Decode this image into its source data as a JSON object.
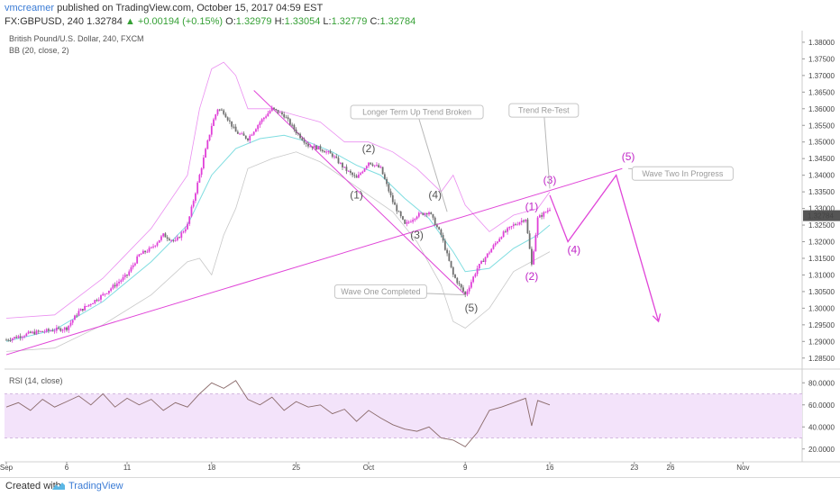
{
  "header": {
    "author": "vmcreamer",
    "published": "published on TradingView.com, October 15, 2017 04:59 EST",
    "symbol": "FX:GBPUSD, 240",
    "last": "1.32784",
    "change": "+0.00194 (+0.15%)",
    "o_label": "O:",
    "o_value": "1.32979",
    "h_label": "H:",
    "h_value": "1.33054",
    "l_label": "L:",
    "l_value": "1.32779",
    "c_label": "C:",
    "c_value": "1.32784"
  },
  "footer": {
    "created_with": "Created with",
    "brand": "TradingView"
  },
  "chart_data": {
    "type": "candlestick",
    "title": "British Pound/U.S. Dollar, 240, FXCM",
    "indicator_label": "BB (20, close, 2)",
    "rsi_label": "RSI (14, close)",
    "current_price_label": "1.32784",
    "ylim": [
      1.2825,
      1.3835
    ],
    "y_ticks": [
      "1.38000",
      "1.37500",
      "1.37000",
      "1.36500",
      "1.36000",
      "1.35500",
      "1.35000",
      "1.34500",
      "1.34000",
      "1.33500",
      "1.33000",
      "1.32500",
      "1.32000",
      "1.31500",
      "1.31000",
      "1.30500",
      "1.30000",
      "1.29500",
      "1.29000",
      "1.28500"
    ],
    "rsi_ylim": [
      10,
      90
    ],
    "rsi_ticks": [
      "80.0000",
      "60.0000",
      "40.0000",
      "20.0000"
    ],
    "rsi_band": [
      30,
      70
    ],
    "x_ticks": [
      {
        "label": "Sep",
        "day": 0
      },
      {
        "label": "6",
        "day": 5
      },
      {
        "label": "11",
        "day": 10
      },
      {
        "label": "18",
        "day": 17
      },
      {
        "label": "25",
        "day": 24
      },
      {
        "label": "Oct",
        "day": 30
      },
      {
        "label": "9",
        "day": 38
      },
      {
        "label": "16",
        "day": 45
      },
      {
        "label": "23",
        "day": 52
      },
      {
        "label": "26",
        "day": 55
      },
      {
        "label": "Nov",
        "day": 61
      }
    ],
    "price_path": [
      [
        0,
        1.2905
      ],
      [
        2,
        1.2925
      ],
      [
        4,
        1.2935
      ],
      [
        5,
        1.294
      ],
      [
        6,
        1.299
      ],
      [
        8,
        1.304
      ],
      [
        10,
        1.31
      ],
      [
        11,
        1.316
      ],
      [
        12,
        1.318
      ],
      [
        13,
        1.322
      ],
      [
        14,
        1.32
      ],
      [
        15,
        1.325
      ],
      [
        16,
        1.34
      ],
      [
        17,
        1.355
      ],
      [
        17.5,
        1.36
      ],
      [
        18,
        1.359
      ],
      [
        19,
        1.353
      ],
      [
        20,
        1.351
      ],
      [
        21,
        1.356
      ],
      [
        22,
        1.36
      ],
      [
        23,
        1.358
      ],
      [
        24,
        1.353
      ],
      [
        25,
        1.349
      ],
      [
        26,
        1.348
      ],
      [
        27,
        1.346
      ],
      [
        28,
        1.342
      ],
      [
        29,
        1.339
      ],
      [
        30,
        1.344
      ],
      [
        31,
        1.342
      ],
      [
        32,
        1.332
      ],
      [
        33,
        1.325
      ],
      [
        34,
        1.328
      ],
      [
        35,
        1.329
      ],
      [
        36,
        1.322
      ],
      [
        37,
        1.31
      ],
      [
        38,
        1.304
      ],
      [
        39,
        1.312
      ],
      [
        40,
        1.317
      ],
      [
        41,
        1.322
      ],
      [
        42,
        1.325
      ],
      [
        43,
        1.327
      ],
      [
        43.5,
        1.313
      ],
      [
        44,
        1.327
      ],
      [
        45,
        1.33
      ]
    ],
    "bb_mid": [
      [
        0,
        1.29
      ],
      [
        4,
        1.2935
      ],
      [
        8,
        1.302
      ],
      [
        12,
        1.314
      ],
      [
        15,
        1.325
      ],
      [
        17,
        1.34
      ],
      [
        19,
        1.348
      ],
      [
        21,
        1.351
      ],
      [
        23,
        1.352
      ],
      [
        25,
        1.35
      ],
      [
        27,
        1.347
      ],
      [
        29,
        1.343
      ],
      [
        31,
        1.34
      ],
      [
        33,
        1.333
      ],
      [
        35,
        1.327
      ],
      [
        37,
        1.317
      ],
      [
        38,
        1.311
      ],
      [
        40,
        1.312
      ],
      [
        42,
        1.318
      ],
      [
        44,
        1.322
      ],
      [
        45,
        1.325
      ]
    ],
    "bb_upper": [
      [
        0,
        1.297
      ],
      [
        4,
        1.298
      ],
      [
        8,
        1.309
      ],
      [
        12,
        1.324
      ],
      [
        15,
        1.34
      ],
      [
        16,
        1.36
      ],
      [
        17,
        1.372
      ],
      [
        18,
        1.374
      ],
      [
        19,
        1.37
      ],
      [
        20,
        1.36
      ],
      [
        22,
        1.36
      ],
      [
        24,
        1.358
      ],
      [
        26,
        1.356
      ],
      [
        28,
        1.35
      ],
      [
        30,
        1.35
      ],
      [
        32,
        1.347
      ],
      [
        34,
        1.342
      ],
      [
        36,
        1.335
      ],
      [
        37,
        1.34
      ],
      [
        38,
        1.331
      ],
      [
        40,
        1.323
      ],
      [
        42,
        1.328
      ],
      [
        44,
        1.33
      ],
      [
        45,
        1.335
      ]
    ],
    "bb_lower": [
      [
        0,
        1.287
      ],
      [
        4,
        1.288
      ],
      [
        8,
        1.295
      ],
      [
        12,
        1.304
      ],
      [
        15,
        1.314
      ],
      [
        16,
        1.315
      ],
      [
        17,
        1.31
      ],
      [
        18,
        1.322
      ],
      [
        19,
        1.33
      ],
      [
        20,
        1.342
      ],
      [
        22,
        1.345
      ],
      [
        24,
        1.347
      ],
      [
        26,
        1.344
      ],
      [
        28,
        1.339
      ],
      [
        30,
        1.334
      ],
      [
        32,
        1.329
      ],
      [
        34,
        1.32
      ],
      [
        36,
        1.307
      ],
      [
        37,
        1.296
      ],
      [
        38,
        1.294
      ],
      [
        40,
        1.3
      ],
      [
        42,
        1.311
      ],
      [
        44,
        1.315
      ],
      [
        45,
        1.317
      ]
    ],
    "rsi": [
      [
        0,
        58
      ],
      [
        1,
        62
      ],
      [
        2,
        55
      ],
      [
        3,
        65
      ],
      [
        4,
        58
      ],
      [
        5,
        63
      ],
      [
        6,
        68
      ],
      [
        7,
        60
      ],
      [
        8,
        70
      ],
      [
        9,
        58
      ],
      [
        10,
        66
      ],
      [
        11,
        60
      ],
      [
        12,
        65
      ],
      [
        13,
        55
      ],
      [
        14,
        62
      ],
      [
        15,
        58
      ],
      [
        16,
        70
      ],
      [
        17,
        80
      ],
      [
        18,
        75
      ],
      [
        19,
        82
      ],
      [
        20,
        65
      ],
      [
        21,
        60
      ],
      [
        22,
        67
      ],
      [
        23,
        55
      ],
      [
        24,
        63
      ],
      [
        25,
        58
      ],
      [
        26,
        60
      ],
      [
        27,
        52
      ],
      [
        28,
        56
      ],
      [
        29,
        45
      ],
      [
        30,
        55
      ],
      [
        31,
        48
      ],
      [
        32,
        42
      ],
      [
        33,
        38
      ],
      [
        34,
        36
      ],
      [
        35,
        40
      ],
      [
        36,
        30
      ],
      [
        37,
        28
      ],
      [
        38,
        22
      ],
      [
        39,
        35
      ],
      [
        40,
        55
      ],
      [
        41,
        58
      ],
      [
        42,
        62
      ],
      [
        43,
        66
      ],
      [
        43.5,
        41
      ],
      [
        44,
        64
      ],
      [
        45,
        60
      ]
    ],
    "lines": [
      {
        "name": "Trend Line",
        "from": [
          0,
          1.286
        ],
        "to": [
          51,
          1.342
        ]
      },
      {
        "name": "Down Trend",
        "from": [
          20.5,
          1.3655
        ],
        "to": [
          38,
          1.304
        ]
      }
    ],
    "projection": [
      [
        45,
        1.334
      ],
      [
        46.5,
        1.32
      ],
      [
        50.5,
        1.34
      ],
      [
        54,
        1.296
      ]
    ],
    "annotations": [
      {
        "text": "Longer Term Up Trend Broken",
        "x": 34,
        "y": 1.359,
        "target": [
          36.5,
          1.329
        ]
      },
      {
        "text": "Trend Re-Test",
        "x": 44.5,
        "y": 1.3595,
        "target": [
          45,
          1.336
        ]
      },
      {
        "text": "Wave One Completed",
        "x": 31,
        "y": 1.305,
        "target": [
          38,
          1.304
        ]
      },
      {
        "text": "Wave Two In Progress",
        "x": 56,
        "y": 1.3405,
        "target": [
          51.5,
          1.342
        ]
      }
    ],
    "wave_labels": [
      {
        "text": "(1)",
        "x": 29,
        "y": 1.333,
        "color": "#555555"
      },
      {
        "text": "(2)",
        "x": 30,
        "y": 1.347,
        "color": "#555555"
      },
      {
        "text": "(3)",
        "x": 34,
        "y": 1.321,
        "color": "#555555"
      },
      {
        "text": "(4)",
        "x": 35.5,
        "y": 1.333,
        "color": "#555555"
      },
      {
        "text": "(5)",
        "x": 38.5,
        "y": 1.299,
        "color": "#555555"
      },
      {
        "text": "(1)",
        "x": 43.5,
        "y": 1.3295,
        "color": "#c026c7"
      },
      {
        "text": "(2)",
        "x": 43.5,
        "y": 1.3085,
        "color": "#c026c7"
      },
      {
        "text": "(3)",
        "x": 45,
        "y": 1.3375,
        "color": "#c026c7"
      },
      {
        "text": "(4)",
        "x": 47,
        "y": 1.3165,
        "color": "#c026c7"
      },
      {
        "text": "(5)",
        "x": 51.5,
        "y": 1.3445,
        "color": "#c026c7"
      }
    ],
    "colors": {
      "up": "#e040d8",
      "down": "#707070",
      "bb_mid": "#7fdde0",
      "bb_band": "#ea8ef0",
      "bb_lower": "#c8c8c8",
      "trend": "#e045d8",
      "rsi": "#8a6a6a",
      "rsi_band": "#f3e3fa",
      "price_tag": "#555555"
    }
  }
}
